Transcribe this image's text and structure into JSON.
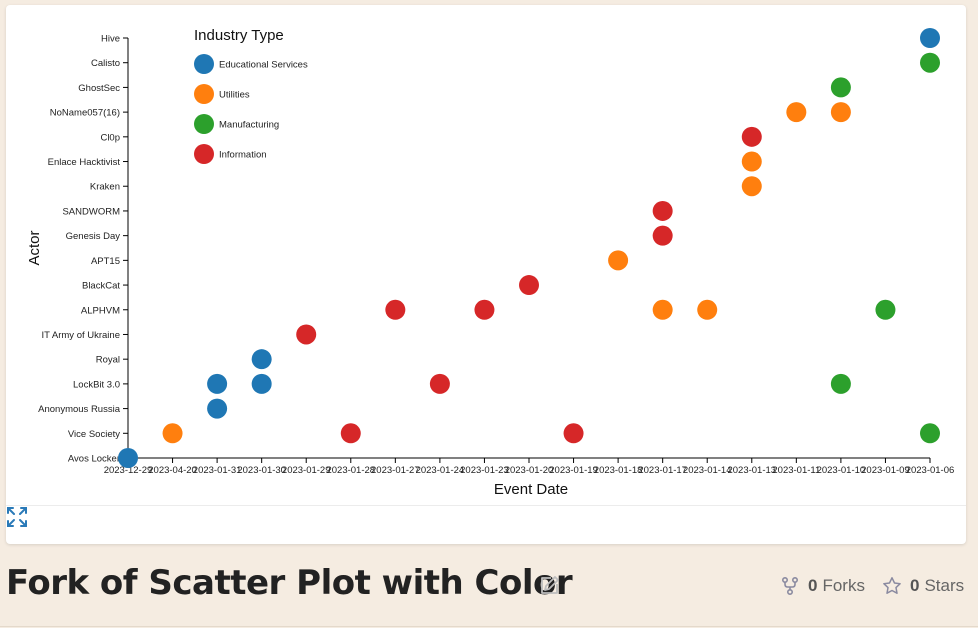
{
  "page": {
    "title": "Fork of Scatter Plot with Color",
    "forks_count": "0",
    "forks_label": "Forks",
    "stars_count": "0",
    "stars_label": "Stars",
    "icons": [
      "edit-icon",
      "fork-icon",
      "star-icon",
      "expand-icon"
    ]
  },
  "chart_data": {
    "type": "scatter",
    "xlabel": "Event Date",
    "ylabel": "Actor",
    "legend_title": "Industry Type",
    "legend_position": "top-left",
    "grid": false,
    "x_categories": [
      "2023-12-29",
      "2023-04-20",
      "2023-01-31",
      "2023-01-30",
      "2023-01-29",
      "2023-01-28",
      "2023-01-27",
      "2023-01-24",
      "2023-01-23",
      "2023-01-20",
      "2023-01-19",
      "2023-01-18",
      "2023-01-17",
      "2023-01-14",
      "2023-01-13",
      "2023-01-11",
      "2023-01-10",
      "2023-01-09",
      "2023-01-06"
    ],
    "y_categories": [
      "Avos Locker",
      "Vice Society",
      "Anonymous Russia",
      "LockBit 3.0",
      "Royal",
      "IT Army of Ukraine",
      "ALPHVM",
      "BlackCat",
      "APT15",
      "Genesis Day",
      "SANDWORM",
      "Kraken",
      "Enlace Hacktivist",
      "Cl0p",
      "NoName057(16)",
      "GhostSec",
      "Calisto",
      "Hive"
    ],
    "series": [
      {
        "name": "Educational Services",
        "color": "#1f77b4",
        "points": [
          {
            "x": "2023-12-29",
            "y": "Avos Locker"
          },
          {
            "x": "2023-01-31",
            "y": "Anonymous Russia"
          },
          {
            "x": "2023-01-31",
            "y": "LockBit 3.0"
          },
          {
            "x": "2023-01-30",
            "y": "LockBit 3.0"
          },
          {
            "x": "2023-01-30",
            "y": "Royal"
          },
          {
            "x": "2023-01-06",
            "y": "Hive"
          }
        ]
      },
      {
        "name": "Utilities",
        "color": "#ff7f0e",
        "points": [
          {
            "x": "2023-04-20",
            "y": "Vice Society"
          },
          {
            "x": "2023-01-18",
            "y": "APT15"
          },
          {
            "x": "2023-01-17",
            "y": "ALPHVM"
          },
          {
            "x": "2023-01-14",
            "y": "ALPHVM"
          },
          {
            "x": "2023-01-13",
            "y": "Kraken"
          },
          {
            "x": "2023-01-13",
            "y": "Enlace Hacktivist"
          },
          {
            "x": "2023-01-11",
            "y": "NoName057(16)"
          },
          {
            "x": "2023-01-10",
            "y": "NoName057(16)"
          }
        ]
      },
      {
        "name": "Manufacturing",
        "color": "#2ca02c",
        "points": [
          {
            "x": "2023-01-10",
            "y": "LockBit 3.0"
          },
          {
            "x": "2023-01-10",
            "y": "GhostSec"
          },
          {
            "x": "2023-01-09",
            "y": "ALPHVM"
          },
          {
            "x": "2023-01-06",
            "y": "Vice Society"
          },
          {
            "x": "2023-01-06",
            "y": "Calisto"
          }
        ]
      },
      {
        "name": "Information",
        "color": "#d62728",
        "points": [
          {
            "x": "2023-01-29",
            "y": "IT Army of Ukraine"
          },
          {
            "x": "2023-01-28",
            "y": "Vice Society"
          },
          {
            "x": "2023-01-27",
            "y": "ALPHVM"
          },
          {
            "x": "2023-01-24",
            "y": "LockBit 3.0"
          },
          {
            "x": "2023-01-23",
            "y": "ALPHVM"
          },
          {
            "x": "2023-01-20",
            "y": "BlackCat"
          },
          {
            "x": "2023-01-19",
            "y": "Vice Society"
          },
          {
            "x": "2023-01-17",
            "y": "Genesis Day"
          },
          {
            "x": "2023-01-17",
            "y": "SANDWORM"
          },
          {
            "x": "2023-01-13",
            "y": "Cl0p"
          }
        ]
      }
    ]
  }
}
